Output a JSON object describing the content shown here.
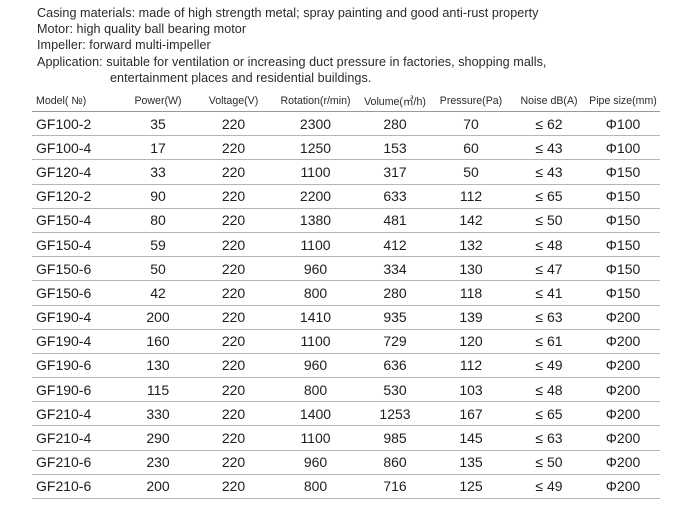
{
  "specs": {
    "casing": "Casing materials: made of high strength metal; spray painting and good anti-rust property",
    "motor": "Motor: high quality ball bearing motor",
    "impeller": "Impeller: forward multi-impeller",
    "application_line1": "Application: suitable for ventilation or increasing duct pressure in factories, shopping malls,",
    "application_line2": "entertainment places and residential buildings."
  },
  "table": {
    "headers": [
      "Model( №)",
      "Power(W)",
      "Voltage(V)",
      "Rotation(r/min)",
      "Volume(㎥/h)",
      "Pressure(Pa)",
      "Noise dB(A)",
      "Pipe size(mm)"
    ],
    "rows": [
      [
        "GF100-2",
        "35",
        "220",
        "2300",
        "280",
        "70",
        "≤ 62",
        "Φ100"
      ],
      [
        "GF100-4",
        "17",
        "220",
        "1250",
        "153",
        "60",
        "≤ 43",
        "Φ100"
      ],
      [
        "GF120-4",
        "33",
        "220",
        "1100",
        "317",
        "50",
        "≤ 43",
        "Φ150"
      ],
      [
        "GF120-2",
        "90",
        "220",
        "2200",
        "633",
        "112",
        "≤ 65",
        "Φ150"
      ],
      [
        "GF150-4",
        "80",
        "220",
        "1380",
        "481",
        "142",
        "≤ 50",
        "Φ150"
      ],
      [
        "GF150-4",
        "59",
        "220",
        "1100",
        "412",
        "132",
        "≤ 48",
        "Φ150"
      ],
      [
        "GF150-6",
        "50",
        "220",
        "960",
        "334",
        "130",
        "≤ 47",
        "Φ150"
      ],
      [
        "GF150-6",
        "42",
        "220",
        "800",
        "280",
        "118",
        "≤ 41",
        "Φ150"
      ],
      [
        "GF190-4",
        "200",
        "220",
        "1410",
        "935",
        "139",
        "≤ 63",
        "Φ200"
      ],
      [
        "GF190-4",
        "160",
        "220",
        "1100",
        "729",
        "120",
        "≤ 61",
        "Φ200"
      ],
      [
        "GF190-6",
        "130",
        "220",
        "960",
        "636",
        "112",
        "≤ 49",
        "Φ200"
      ],
      [
        "GF190-6",
        "115",
        "220",
        "800",
        "530",
        "103",
        "≤ 48",
        "Φ200"
      ],
      [
        "GF210-4",
        "330",
        "220",
        "1400",
        "1253",
        "167",
        "≤ 65",
        "Φ200"
      ],
      [
        "GF210-4",
        "290",
        "220",
        "1100",
        "985",
        "145",
        "≤ 63",
        "Φ200"
      ],
      [
        "GF210-6",
        "230",
        "220",
        "960",
        "860",
        "135",
        "≤ 50",
        "Φ200"
      ],
      [
        "GF210-6",
        "200",
        "220",
        "800",
        "716",
        "125",
        "≤ 49",
        "Φ200"
      ]
    ]
  }
}
